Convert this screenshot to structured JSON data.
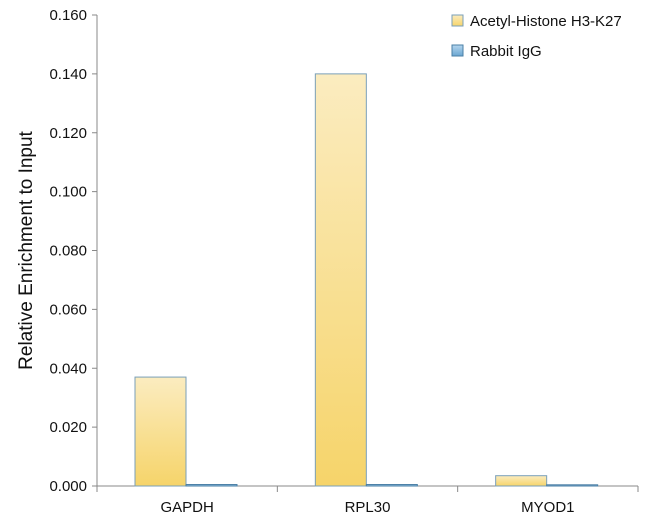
{
  "chart_data": {
    "type": "bar",
    "title": "",
    "xlabel": "",
    "ylabel": "Relative Enrichment to Input",
    "categories": [
      "GAPDH",
      "RPL30",
      "MYOD1"
    ],
    "series": [
      {
        "name": "Acetyl-Histone H3-K27",
        "values": [
          0.037,
          0.14,
          0.0035
        ],
        "color": "#f7d67a"
      },
      {
        "name": "Rabbit IgG",
        "values": [
          0.0005,
          0.0005,
          0.0002
        ],
        "color": "#7fb3d5"
      }
    ],
    "ylim": [
      0,
      0.16
    ],
    "yticks": [
      "0.000",
      "0.020",
      "0.040",
      "0.060",
      "0.080",
      "0.100",
      "0.120",
      "0.140",
      "0.160"
    ],
    "grid": false,
    "legend_position": "top-right"
  }
}
